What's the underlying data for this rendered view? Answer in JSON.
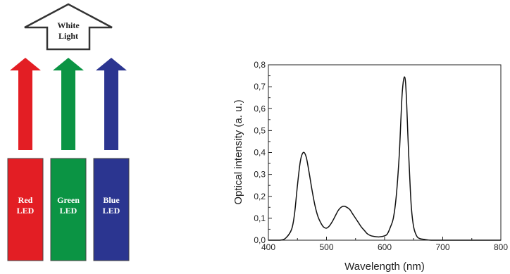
{
  "diagram": {
    "white_arrow": {
      "line1": "White",
      "line2": "Light",
      "color": "#ffffff",
      "stroke": "#333333"
    },
    "leds": [
      {
        "name": "red",
        "line1": "Red",
        "line2": "LED",
        "color": "#e31e24"
      },
      {
        "name": "green",
        "line1": "Green",
        "line2": "LED",
        "color": "#0b9444"
      },
      {
        "name": "blue",
        "line1": "Blue",
        "line2": "LED",
        "color": "#2b3590"
      }
    ]
  },
  "chart_data": {
    "type": "line",
    "title": "",
    "xlabel": "Wavelength (nm)",
    "ylabel": "Optical intensity (a. u.)",
    "xlim": [
      400,
      800
    ],
    "ylim": [
      0,
      0.8
    ],
    "x_ticks": [
      "400",
      "500",
      "600",
      "700",
      "800"
    ],
    "y_ticks": [
      "0,0",
      "0,1",
      "0,2",
      "0,3",
      "0,4",
      "0,5",
      "0,6",
      "0,7",
      "0,8"
    ],
    "grid": false,
    "line_color": "#111111",
    "series": [
      {
        "x": [
          400,
          420,
          430,
          440,
          445,
          450,
          455,
          460,
          465,
          470,
          475,
          480,
          485,
          490,
          495,
          500,
          505,
          510,
          515,
          520,
          525,
          530,
          535,
          540,
          545,
          550,
          555,
          560,
          565,
          570,
          575,
          580,
          590,
          600,
          605,
          610,
          615,
          620,
          625,
          628,
          630,
          632,
          634,
          636,
          638,
          640,
          643,
          646,
          650,
          655,
          660,
          670,
          680,
          700,
          720,
          800
        ],
        "y": [
          0.0,
          0.0,
          0.01,
          0.05,
          0.12,
          0.25,
          0.36,
          0.4,
          0.38,
          0.31,
          0.23,
          0.16,
          0.11,
          0.08,
          0.06,
          0.055,
          0.065,
          0.085,
          0.11,
          0.135,
          0.15,
          0.155,
          0.15,
          0.14,
          0.12,
          0.1,
          0.08,
          0.06,
          0.045,
          0.03,
          0.022,
          0.018,
          0.015,
          0.02,
          0.03,
          0.06,
          0.1,
          0.2,
          0.38,
          0.55,
          0.66,
          0.72,
          0.745,
          0.72,
          0.62,
          0.48,
          0.3,
          0.15,
          0.06,
          0.02,
          0.008,
          0.003,
          0.0,
          0.0,
          0.0,
          0.0
        ]
      }
    ]
  }
}
